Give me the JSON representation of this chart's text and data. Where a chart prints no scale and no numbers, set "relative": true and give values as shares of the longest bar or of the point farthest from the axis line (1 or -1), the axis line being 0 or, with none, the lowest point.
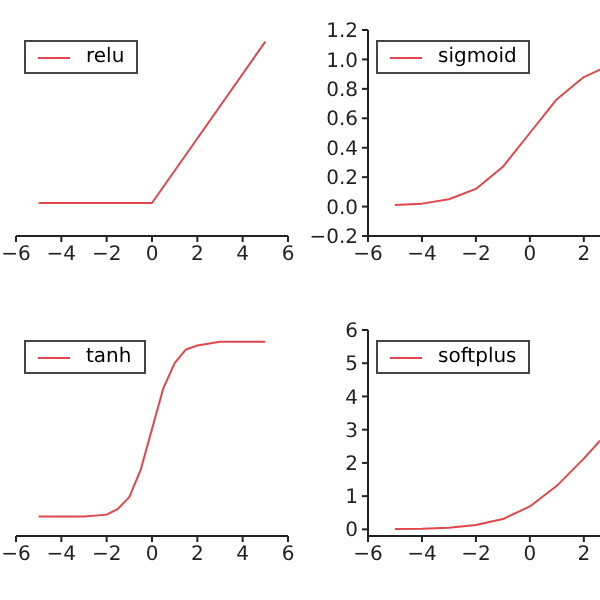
{
  "chart_data": [
    {
      "type": "line",
      "x": [
        -5,
        0,
        5
      ],
      "relative": true,
      "series": [
        {
          "name": "relu",
          "color": "#e0474c",
          "values": [
            0.17,
            0.17,
            1
          ]
        }
      ],
      "xlim": [
        -6,
        6
      ],
      "xticks": [
        {
          "value": -6,
          "label": "−6"
        },
        {
          "value": -4,
          "label": "−4"
        },
        {
          "value": -2,
          "label": "−2"
        },
        0,
        2,
        4,
        6
      ],
      "legend": "top left"
    },
    {
      "type": "line",
      "x": [
        -5,
        -4,
        -3,
        -2,
        -1,
        0,
        1,
        2,
        2.6
      ],
      "series": [
        {
          "name": "sigmoid",
          "color": "#e0474c",
          "values": [
            0.01,
            0.02,
            0.05,
            0.12,
            0.27,
            0.5,
            0.73,
            0.88,
            0.93
          ]
        }
      ],
      "xlim": [
        -6,
        2.6
      ],
      "xticks": [
        {
          "value": -6,
          "label": "−6"
        },
        {
          "value": -4,
          "label": "−4"
        },
        {
          "value": -2,
          "label": "−2"
        },
        0,
        2
      ],
      "ylim": [
        -0.2,
        1.2
      ],
      "yticks": [
        {
          "value": -0.2,
          "label": "−0.2"
        },
        {
          "value": 0,
          "label": "0.0"
        },
        0.2,
        0.4,
        0.6,
        0.8,
        {
          "value": 1,
          "label": "1.0"
        },
        1.2
      ],
      "legend": "top left"
    },
    {
      "type": "line",
      "x": [
        -5,
        -4,
        -3,
        -2,
        -1.5,
        -1,
        -0.5,
        0,
        0.5,
        1,
        1.5,
        2,
        3,
        4,
        5
      ],
      "relative": true,
      "series": [
        {
          "name": "tanh",
          "color": "#e0474c",
          "values": [
            0.1,
            0.1,
            0.1,
            0.11,
            0.14,
            0.2,
            0.34,
            0.55,
            0.76,
            0.89,
            0.96,
            0.98,
            1,
            1,
            1
          ]
        }
      ],
      "xlim": [
        -6,
        6
      ],
      "xticks": [
        {
          "value": -6,
          "label": "−6"
        },
        {
          "value": -4,
          "label": "−4"
        },
        {
          "value": -2,
          "label": "−2"
        },
        0,
        2,
        4,
        6
      ],
      "legend": "top left"
    },
    {
      "type": "line",
      "x": [
        -5,
        -4,
        -3,
        -2,
        -1,
        0,
        1,
        2,
        2.6
      ],
      "series": [
        {
          "name": "softplus",
          "color": "#e0474c",
          "values": [
            0.01,
            0.02,
            0.05,
            0.13,
            0.31,
            0.69,
            1.31,
            2.13,
            2.67
          ]
        }
      ],
      "xlim": [
        -6,
        2.6
      ],
      "xticks": [
        {
          "value": -6,
          "label": "−6"
        },
        {
          "value": -4,
          "label": "−4"
        },
        {
          "value": -2,
          "label": "−2"
        },
        0,
        2
      ],
      "ylim": [
        -0.2,
        6
      ],
      "yticks": [
        0,
        1,
        2,
        3,
        4,
        5,
        6
      ],
      "legend": "top left"
    }
  ]
}
